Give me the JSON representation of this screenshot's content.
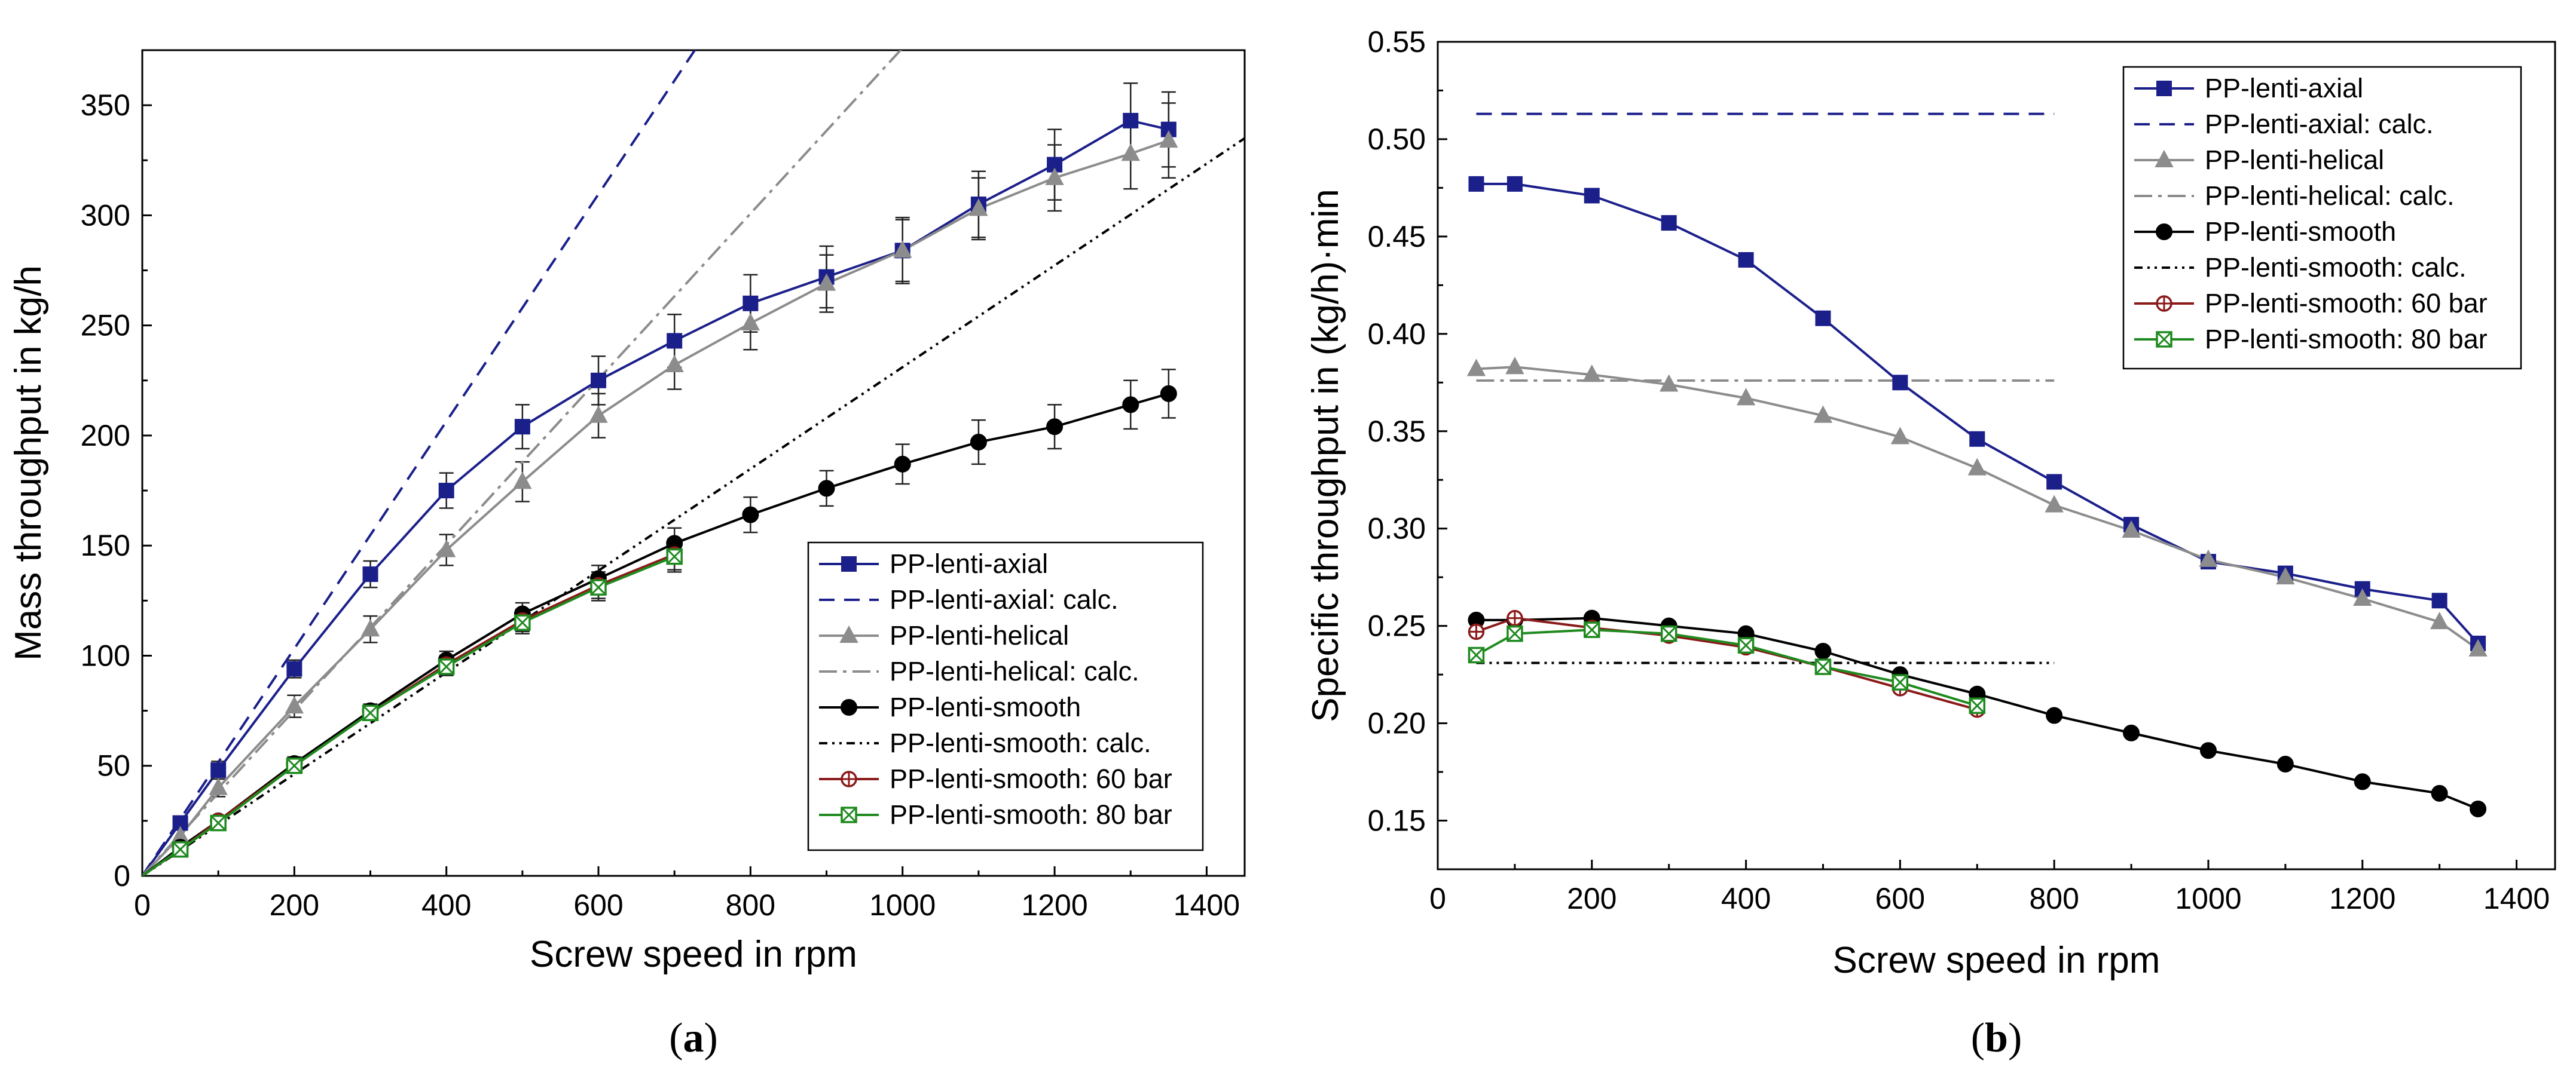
{
  "colors": {
    "axial": "#1b1f8a",
    "helical": "#8c8c8c",
    "smooth": "#000000",
    "smooth60": "#8b1a1a",
    "smooth80": "#1f8a1f"
  },
  "chart_data": [
    {
      "type": "line",
      "panel": "a",
      "caption": {
        "open": "(",
        "letter": "a",
        "close": ")"
      },
      "xlabel": "Screw speed in rpm",
      "ylabel": "Mass throughput in kg/h",
      "xlim": [
        0,
        1450
      ],
      "ylim": [
        0,
        375
      ],
      "xticks": [
        0,
        200,
        400,
        600,
        800,
        1000,
        1200,
        1400
      ],
      "yticks": [
        0,
        50,
        100,
        150,
        200,
        250,
        300,
        350
      ],
      "legend_position": "bottom-right",
      "series": [
        {
          "name": "PP-lenti-axial",
          "kind": "measured",
          "color_key": "axial",
          "marker": "square",
          "x": [
            50,
            100,
            200,
            300,
            400,
            500,
            600,
            700,
            800,
            900,
            1000,
            1100,
            1200,
            1300,
            1350
          ],
          "y": [
            24,
            48,
            94,
            137,
            175,
            204,
            225,
            243,
            260,
            272,
            284,
            305,
            323,
            343,
            339
          ],
          "err": [
            3,
            4,
            4,
            6,
            8,
            10,
            11,
            12,
            13,
            14,
            15,
            15,
            16,
            17,
            17
          ]
        },
        {
          "name": "PP-lenti-axial: calc.",
          "kind": "calc",
          "color_key": "axial",
          "dash": "26 16",
          "x": [
            0,
            1450
          ],
          "y": [
            0,
            748.2
          ]
        },
        {
          "name": "PP-lenti-helical",
          "kind": "measured",
          "color_key": "helical",
          "marker": "triangle",
          "x": [
            50,
            100,
            200,
            300,
            400,
            500,
            600,
            700,
            800,
            900,
            1000,
            1100,
            1200,
            1300,
            1350
          ],
          "y": [
            18,
            40,
            77,
            112,
            148,
            179,
            209,
            232,
            251,
            269,
            284,
            303,
            317,
            328,
            334
          ],
          "err": [
            3,
            4,
            5,
            6,
            7,
            9,
            10,
            11,
            12,
            13,
            14,
            14,
            15,
            16,
            17
          ]
        },
        {
          "name": "PP-lenti-helical: calc.",
          "kind": "calc",
          "color_key": "helical",
          "dash": "30 10 6 10",
          "x": [
            0,
            1450
          ],
          "y": [
            0,
            545.2
          ]
        },
        {
          "name": "PP-lenti-smooth",
          "kind": "measured",
          "color_key": "smooth",
          "marker": "circle",
          "x": [
            50,
            100,
            200,
            300,
            400,
            500,
            600,
            700,
            800,
            900,
            1000,
            1100,
            1200,
            1300,
            1350
          ],
          "y": [
            13,
            25,
            51,
            75,
            98,
            119,
            135,
            151,
            164,
            176,
            187,
            197,
            204,
            214,
            219
          ],
          "err": [
            2,
            2,
            3,
            3,
            4,
            5,
            6,
            7,
            8,
            8,
            9,
            10,
            10,
            11,
            11
          ]
        },
        {
          "name": "PP-lenti-smooth: calc.",
          "kind": "calc",
          "color_key": "smooth",
          "dash": "14 8 4 8 4 8",
          "x": [
            0,
            1450
          ],
          "y": [
            0,
            335.0
          ]
        },
        {
          "name": "PP-lenti-smooth: 60 bar",
          "kind": "measured",
          "color_key": "smooth60",
          "marker": "circle-plus",
          "x": [
            50,
            100,
            200,
            300,
            400,
            500,
            600,
            700
          ],
          "y": [
            12,
            25,
            50,
            74,
            96,
            116,
            132,
            146
          ],
          "err": [
            2,
            2,
            3,
            3,
            4,
            5,
            6,
            7
          ]
        },
        {
          "name": "PP-lenti-smooth: 80 bar",
          "kind": "measured",
          "color_key": "smooth80",
          "marker": "square-x",
          "x": [
            50,
            100,
            200,
            300,
            400,
            500,
            600,
            700
          ],
          "y": [
            12,
            24,
            50,
            74,
            95,
            115,
            131,
            145
          ],
          "err": [
            2,
            2,
            3,
            3,
            4,
            5,
            6,
            7
          ]
        }
      ]
    },
    {
      "type": "line",
      "panel": "b",
      "caption": {
        "open": "(",
        "letter": "b",
        "close": ")"
      },
      "xlabel": "Screw speed in rpm",
      "ylabel": "Specific throughput in (kg/h)·min",
      "xlim": [
        0,
        1450
      ],
      "ylim": [
        0.125,
        0.55
      ],
      "xticks": [
        0,
        200,
        400,
        600,
        800,
        1000,
        1200,
        1400
      ],
      "yticks": [
        0.15,
        0.2,
        0.25,
        0.3,
        0.35,
        0.4,
        0.45,
        0.5,
        0.55
      ],
      "ytick_labels": [
        "0.15",
        "0.20",
        "0.25",
        "0.30",
        "0.35",
        "0.40",
        "0.45",
        "0.50",
        "0.55"
      ],
      "legend_position": "top-right",
      "series": [
        {
          "name": "PP-lenti-axial",
          "kind": "measured",
          "color_key": "axial",
          "marker": "square",
          "x": [
            50,
            100,
            200,
            300,
            400,
            500,
            600,
            700,
            800,
            900,
            1000,
            1100,
            1200,
            1300,
            1350
          ],
          "y": [
            0.477,
            0.477,
            0.471,
            0.457,
            0.438,
            0.408,
            0.375,
            0.346,
            0.324,
            0.302,
            0.283,
            0.277,
            0.269,
            0.263,
            0.241
          ]
        },
        {
          "name": "PP-lenti-axial: calc.",
          "kind": "calc",
          "color_key": "axial",
          "dash": "26 16",
          "x": [
            50,
            800
          ],
          "y": [
            0.513,
            0.513
          ]
        },
        {
          "name": "PP-lenti-helical",
          "kind": "measured",
          "color_key": "helical",
          "marker": "triangle",
          "x": [
            50,
            100,
            200,
            300,
            400,
            500,
            600,
            700,
            800,
            900,
            1000,
            1100,
            1200,
            1300,
            1350
          ],
          "y": [
            0.382,
            0.383,
            0.379,
            0.374,
            0.367,
            0.358,
            0.347,
            0.331,
            0.312,
            0.299,
            0.284,
            0.275,
            0.264,
            0.252,
            0.238
          ]
        },
        {
          "name": "PP-lenti-helical: calc.",
          "kind": "calc",
          "color_key": "helical",
          "dash": "30 10 6 10",
          "x": [
            50,
            800
          ],
          "y": [
            0.376,
            0.376
          ]
        },
        {
          "name": "PP-lenti-smooth",
          "kind": "measured",
          "color_key": "smooth",
          "marker": "circle",
          "x": [
            50,
            100,
            200,
            300,
            400,
            500,
            600,
            700,
            800,
            900,
            1000,
            1100,
            1200,
            1300,
            1350
          ],
          "y": [
            0.253,
            0.253,
            0.254,
            0.25,
            0.246,
            0.237,
            0.225,
            0.215,
            0.204,
            0.195,
            0.186,
            0.179,
            0.17,
            0.164,
            0.156
          ]
        },
        {
          "name": "PP-lenti-smooth: calc.",
          "kind": "calc",
          "color_key": "smooth",
          "dash": "14 8 4 8 4 8",
          "x": [
            50,
            800
          ],
          "y": [
            0.231,
            0.231
          ]
        },
        {
          "name": "PP-lenti-smooth: 60 bar",
          "kind": "measured",
          "color_key": "smooth60",
          "marker": "circle-plus",
          "x": [
            50,
            100,
            200,
            300,
            400,
            500,
            600,
            700
          ],
          "y": [
            0.247,
            0.254,
            0.249,
            0.245,
            0.239,
            0.229,
            0.218,
            0.207
          ]
        },
        {
          "name": "PP-lenti-smooth: 80 bar",
          "kind": "measured",
          "color_key": "smooth80",
          "marker": "square-x",
          "x": [
            50,
            100,
            200,
            300,
            400,
            500,
            600,
            700
          ],
          "y": [
            0.235,
            0.246,
            0.248,
            0.246,
            0.24,
            0.229,
            0.221,
            0.209
          ]
        }
      ]
    }
  ]
}
